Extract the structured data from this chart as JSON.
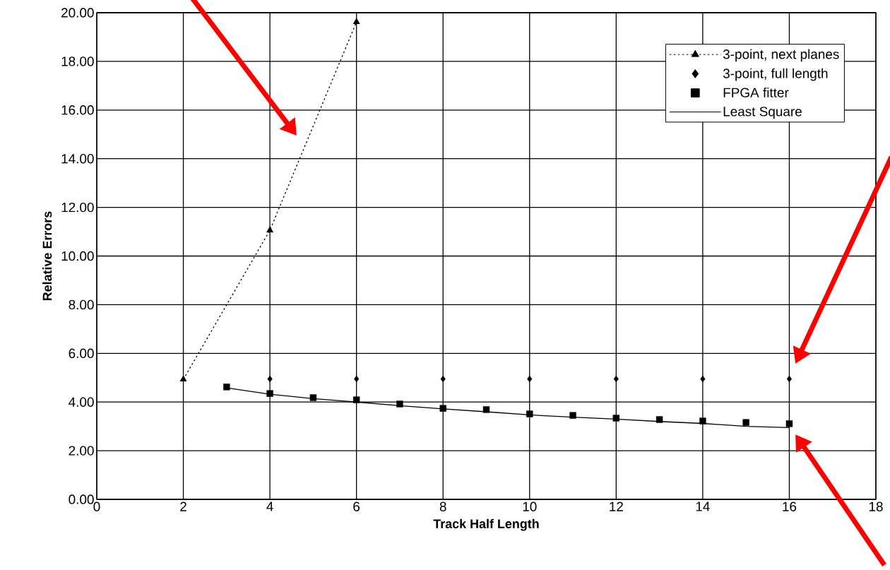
{
  "chart_data": {
    "type": "line",
    "xlabel": "Track Half Length",
    "ylabel": "Relative Errors",
    "xlim": [
      0,
      18
    ],
    "ylim": [
      0,
      20
    ],
    "xticks": [
      0,
      2,
      4,
      6,
      8,
      10,
      12,
      14,
      16,
      18
    ],
    "yticks": [
      {
        "value": 0,
        "label": "0.00"
      },
      {
        "value": 2,
        "label": "2.00"
      },
      {
        "value": 4,
        "label": "4.00"
      },
      {
        "value": 6,
        "label": "6.00"
      },
      {
        "value": 8,
        "label": "8.00"
      },
      {
        "value": 10,
        "label": "10.00"
      },
      {
        "value": 12,
        "label": "12.00"
      },
      {
        "value": 14,
        "label": "14.00"
      },
      {
        "value": 16,
        "label": "16.00"
      },
      {
        "value": 18,
        "label": "18.00"
      },
      {
        "value": 20,
        "label": "20.00"
      }
    ],
    "grid": true,
    "legend": "top right",
    "series": [
      {
        "name": "3-point, next planes",
        "type": "line",
        "color": "#000000",
        "marker": "triangle",
        "line_style": "dotted",
        "x": [
          2,
          4,
          6
        ],
        "values": [
          4.93,
          11.06,
          19.62
        ]
      },
      {
        "name": "3-point, full length",
        "type": "scatter",
        "color": "#000000",
        "marker": "diamond",
        "x": [
          4,
          6,
          8,
          10,
          12,
          14,
          16
        ],
        "values": [
          4.95,
          4.95,
          4.95,
          4.95,
          4.95,
          4.95,
          4.95
        ]
      },
      {
        "name": "FPGA fitter",
        "type": "scatter",
        "color": "#000000",
        "marker": "square",
        "x": [
          3,
          4,
          5,
          6,
          7,
          8,
          9,
          10,
          11,
          12,
          13,
          14,
          15,
          16
        ],
        "values": [
          4.62,
          4.35,
          4.18,
          4.09,
          3.92,
          3.74,
          3.69,
          3.51,
          3.45,
          3.34,
          3.28,
          3.22,
          3.16,
          3.11
        ]
      },
      {
        "name": "Least Square",
        "type": "line",
        "color": "#000000",
        "marker": "none",
        "line_style": "solid",
        "x": [
          3,
          4,
          5,
          6,
          7,
          8,
          9,
          10,
          11,
          12,
          13,
          14,
          15,
          16
        ],
        "values": [
          4.58,
          4.32,
          4.14,
          4.0,
          3.85,
          3.72,
          3.6,
          3.47,
          3.38,
          3.3,
          3.2,
          3.12,
          3.0,
          2.95
        ]
      }
    ]
  }
}
